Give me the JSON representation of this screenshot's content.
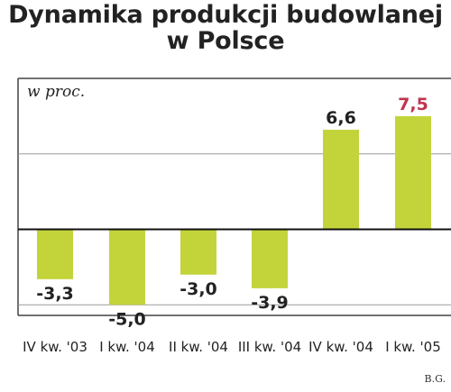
{
  "title_line1": "Dynamika produkcji budowlanej",
  "title_line2": "w Polsce",
  "credit": "B.G.",
  "colors": {
    "bar": "#c3d43b",
    "highlight_label": "#c0334d",
    "label": "#222222",
    "grid": "#9a9a9a",
    "zero_line": "#111111"
  },
  "chart_data": {
    "type": "bar",
    "title": "Dynamika produkcji budowlanej w Polsce",
    "ylabel": "w proc.",
    "categories": [
      "IV kw. '03",
      "I kw. '04",
      "II kw. '04",
      "III kw. '04",
      "IV kw. '04",
      "I kw. '05"
    ],
    "values": [
      -3.3,
      -5.0,
      -3.0,
      -3.9,
      6.6,
      7.5
    ],
    "value_labels": [
      "-3,3",
      "-5,0",
      "-3,0",
      "-3,9",
      "6,6",
      "7,5"
    ],
    "highlight_index": 5,
    "ylim": [
      -5.7,
      10
    ],
    "gridlines": [
      -5,
      0,
      5
    ],
    "grid": true,
    "legend": "none"
  }
}
